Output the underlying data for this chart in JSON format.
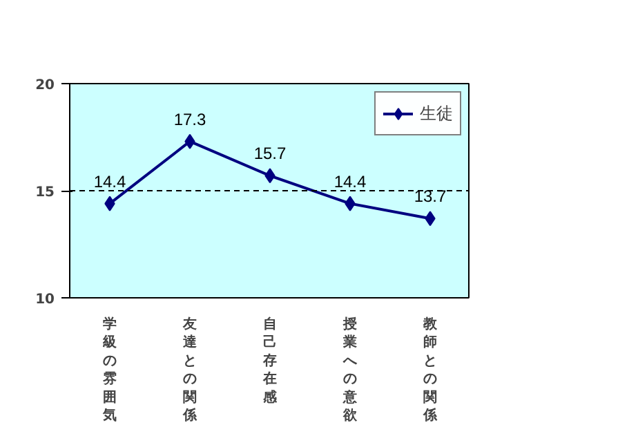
{
  "chart_data": {
    "type": "line",
    "categories": [
      "学級の雰囲気",
      "友達との関係",
      "自己存在感",
      "授業への意欲",
      "教師との関係"
    ],
    "series": [
      {
        "name": "生徒",
        "color": "#000080",
        "values": [
          14.4,
          17.3,
          15.7,
          14.4,
          13.7
        ]
      }
    ],
    "ylim": [
      10,
      20
    ],
    "yticks": [
      10,
      15,
      20
    ],
    "ref_lines": [
      {
        "axis": "y",
        "value": 15,
        "color": "#000000",
        "line_style": "dashed"
      }
    ],
    "marker": "diamond",
    "line_style": "solid",
    "data_labels": true,
    "grid": false,
    "legend": "top right"
  }
}
